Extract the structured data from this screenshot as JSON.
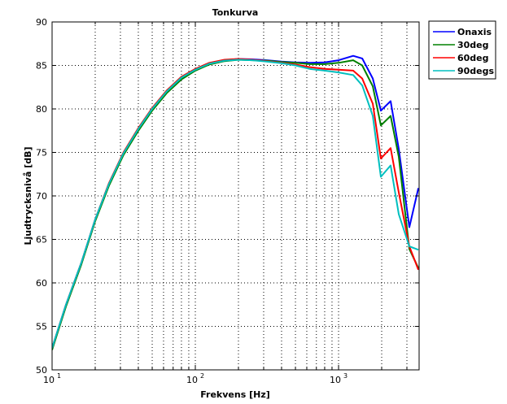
{
  "chart_data": {
    "type": "line",
    "title": "Tonkurva",
    "xlabel": "Frekvens [Hz]",
    "ylabel": "Ljudtrycksnivå [dB]",
    "xscale": "log",
    "xlim": [
      10,
      3650
    ],
    "ylim": [
      50,
      90
    ],
    "grid": true,
    "legend_position": "outside-top-right",
    "x_ticks": [
      {
        "base": "10",
        "exp": "1",
        "value": 10
      },
      {
        "base": "10",
        "exp": "2",
        "value": 100
      },
      {
        "base": "10",
        "exp": "3",
        "value": 1000
      }
    ],
    "y_ticks": [
      "50",
      "55",
      "60",
      "65",
      "70",
      "75",
      "80",
      "85",
      "90"
    ],
    "x": [
      10,
      12.5,
      16,
      20,
      25,
      31.5,
      40,
      50,
      63,
      80,
      100,
      125,
      160,
      200,
      250,
      315,
      400,
      500,
      630,
      800,
      1000,
      1265,
      1462,
      1733,
      1974,
      2310,
      2633,
      3118,
      3605
    ],
    "series": [
      {
        "name": "Onaxis",
        "color": "#0000ff",
        "values": [
          52.5,
          57.5,
          62.3,
          67.3,
          71.4,
          74.9,
          77.7,
          80.0,
          82.0,
          83.6,
          84.5,
          85.2,
          85.6,
          85.75,
          85.7,
          85.6,
          85.45,
          85.35,
          85.3,
          85.35,
          85.6,
          86.1,
          85.8,
          83.5,
          79.8,
          80.9,
          75.4,
          66.4,
          70.9
        ]
      },
      {
        "name": "30deg",
        "color": "#008000",
        "values": [
          52.3,
          57.3,
          62.1,
          67.1,
          71.2,
          74.7,
          77.5,
          79.8,
          81.8,
          83.4,
          84.4,
          85.1,
          85.5,
          85.65,
          85.6,
          85.55,
          85.4,
          85.3,
          85.15,
          85.15,
          85.3,
          85.6,
          85.0,
          82.6,
          78.1,
          79.2,
          74.5,
          63.9,
          61.7
        ]
      },
      {
        "name": "60deg",
        "color": "#ff0000",
        "values": [
          52.5,
          57.5,
          62.3,
          67.3,
          71.5,
          75.0,
          77.8,
          80.1,
          82.1,
          83.7,
          84.6,
          85.3,
          85.65,
          85.75,
          85.65,
          85.5,
          85.3,
          85.1,
          84.8,
          84.6,
          84.5,
          84.4,
          83.5,
          80.6,
          74.3,
          75.5,
          70.4,
          64.2,
          61.5
        ]
      },
      {
        "name": "90degs",
        "color": "#00bfbf",
        "values": [
          52.5,
          57.5,
          62.3,
          67.3,
          71.4,
          74.9,
          77.7,
          80.0,
          82.0,
          83.6,
          84.5,
          85.2,
          85.55,
          85.65,
          85.6,
          85.45,
          85.25,
          85.0,
          84.6,
          84.4,
          84.2,
          83.9,
          82.7,
          79.2,
          72.2,
          73.5,
          67.9,
          64.2,
          63.8
        ]
      }
    ]
  }
}
